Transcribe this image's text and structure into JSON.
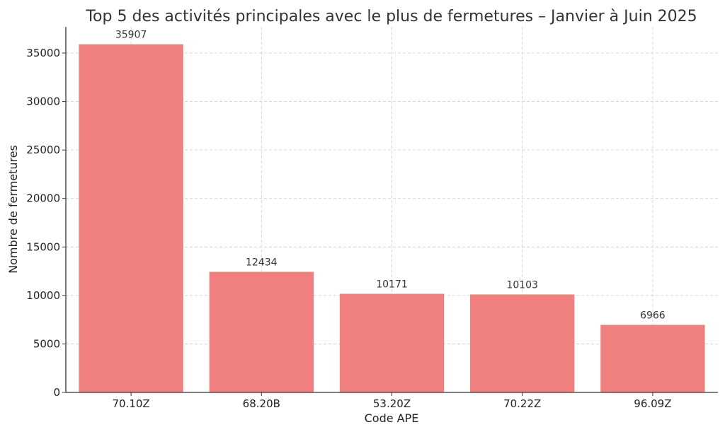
{
  "chart_data": {
    "type": "bar",
    "title": "Top 5 des activités principales avec le plus de fermetures – Janvier à Juin 2025",
    "xlabel": "Code APE",
    "ylabel": "Nombre de fermetures",
    "categories": [
      "70.10Z",
      "68.20B",
      "53.20Z",
      "70.22Z",
      "96.09Z"
    ],
    "values": [
      35907,
      12434,
      10171,
      10103,
      6966
    ],
    "data_labels": [
      "35907",
      "12434",
      "10171",
      "10103",
      "6966"
    ],
    "ylim": [
      0,
      37700
    ],
    "yticks": [
      0,
      5000,
      10000,
      15000,
      20000,
      25000,
      30000,
      35000
    ],
    "ytick_labels": [
      "0",
      "5000",
      "10000",
      "15000",
      "20000",
      "25000",
      "30000",
      "35000"
    ],
    "grid": true,
    "bar_color": "#f08080",
    "grid_color": "#cccccc",
    "axis_color": "#333333"
  }
}
